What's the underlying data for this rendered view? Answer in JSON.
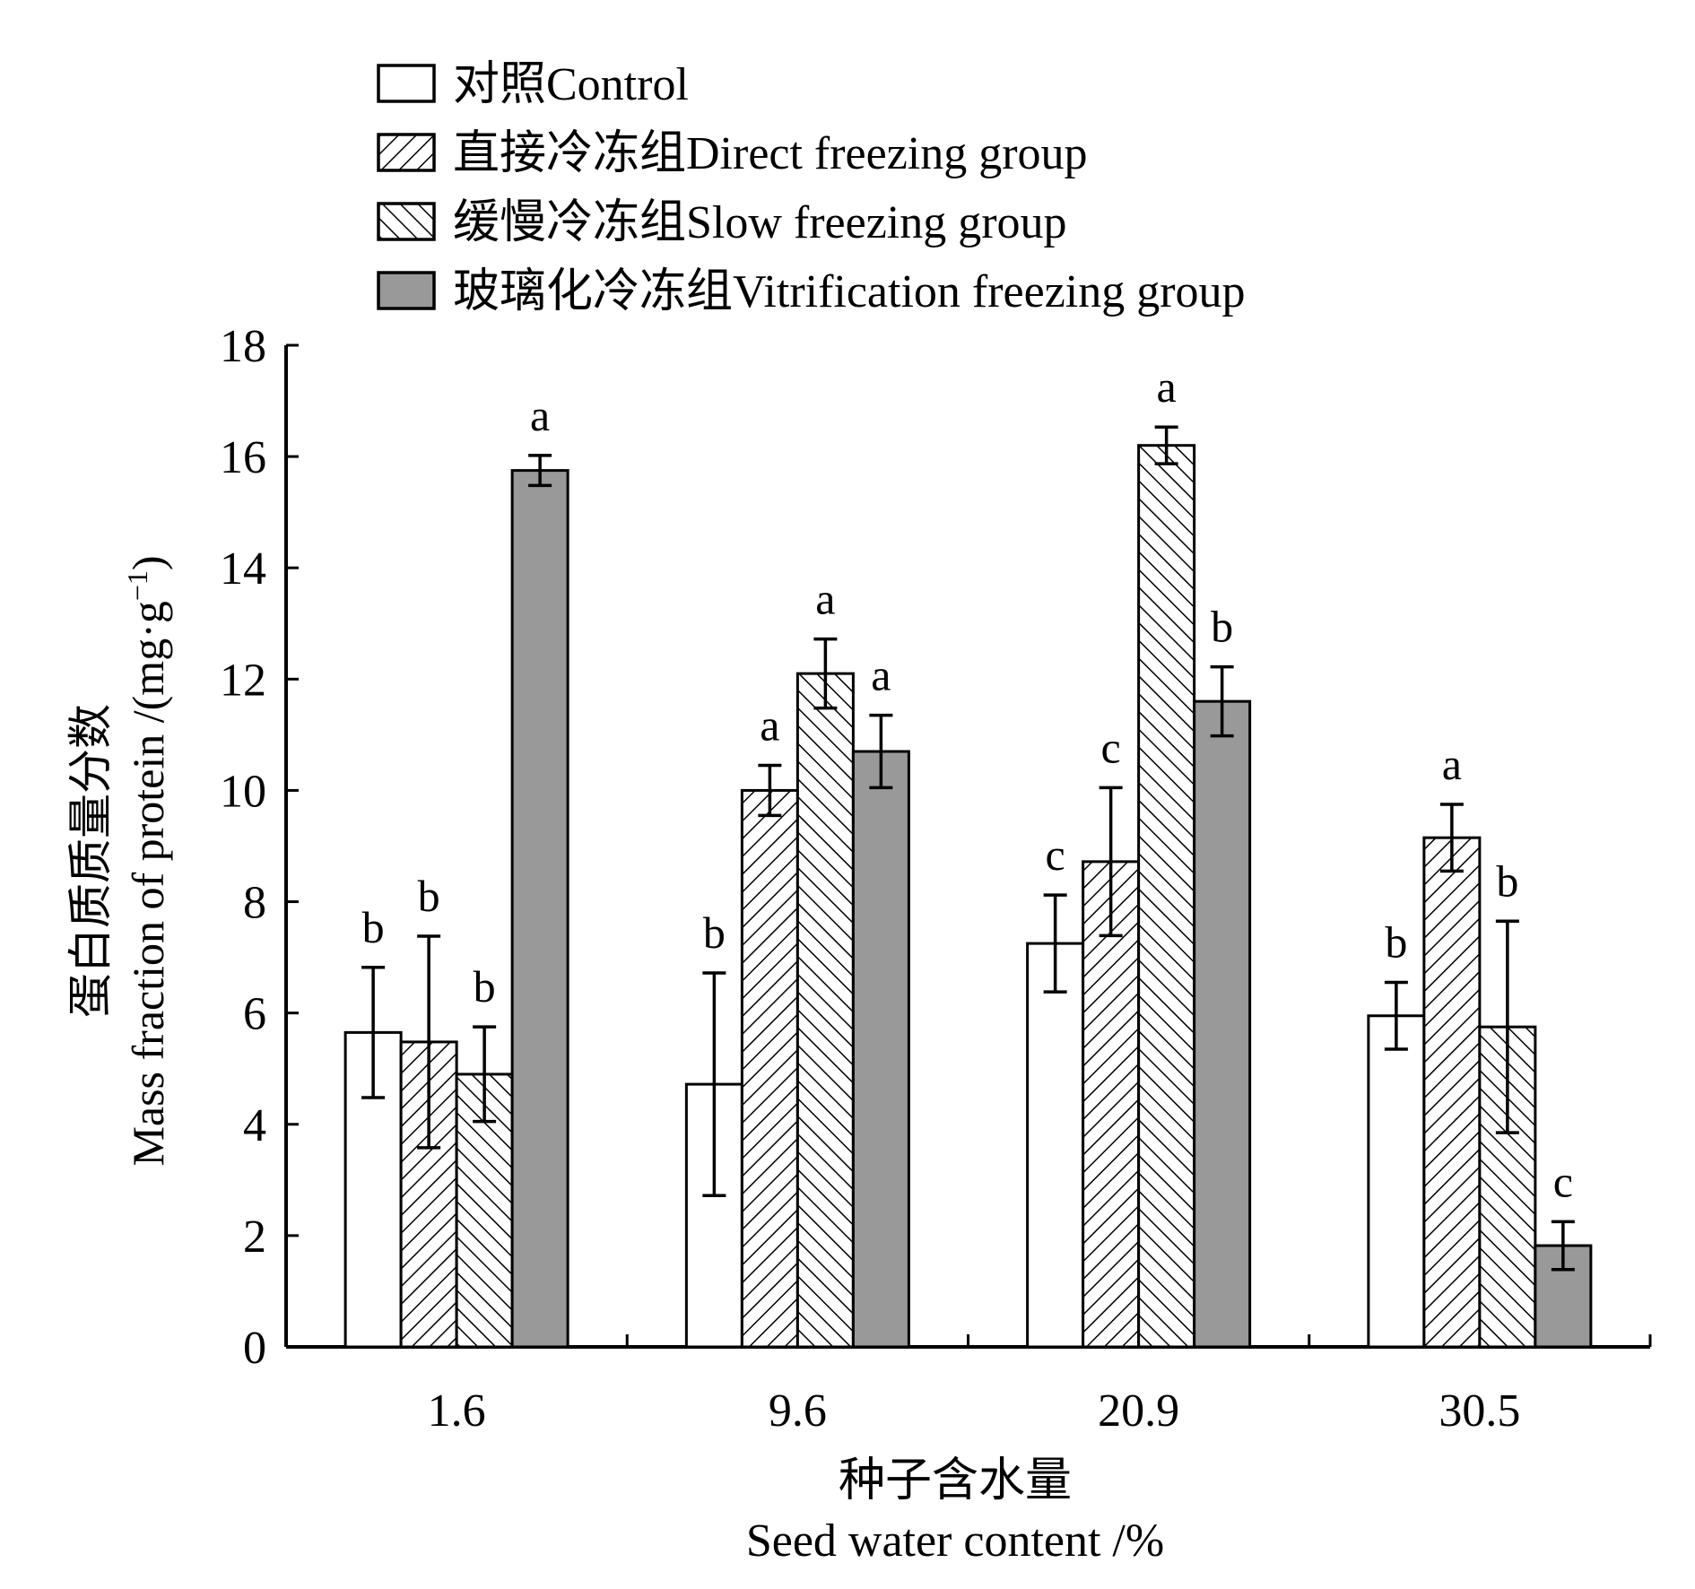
{
  "chart_data": {
    "type": "bar",
    "categories": [
      "1.6",
      "9.6",
      "20.9",
      "30.5"
    ],
    "xlabel_cn": "种子含水量",
    "xlabel_en": "Seed water content /%",
    "ylabel_cn": "蛋白质质量分数",
    "ylabel_en": "Mass fraction of protein /(mg·g",
    "ylabel_sup": "−1",
    "ylabel_close": ")",
    "ylim": [
      0,
      18
    ],
    "yticks": [
      "0",
      "2",
      "4",
      "6",
      "8",
      "10",
      "12",
      "14",
      "16",
      "18"
    ],
    "grid": false,
    "legend_position": "top",
    "series": [
      {
        "name": "对照Control",
        "pattern": "solid-white",
        "color": "#ffffff",
        "values": [
          5.65,
          4.72,
          7.25,
          5.95
        ],
        "errors": [
          1.17,
          2.0,
          0.87,
          0.6
        ],
        "letters": [
          "b",
          "b",
          "c",
          "b"
        ]
      },
      {
        "name": "直接冷冻组Direct freezing group",
        "pattern": "forward-hatch",
        "color": "#ffffff",
        "values": [
          5.48,
          10.0,
          8.72,
          9.15
        ],
        "errors": [
          1.9,
          0.45,
          1.33,
          0.6
        ],
        "letters": [
          "b",
          "a",
          "c",
          "a"
        ]
      },
      {
        "name": "缓慢冷冻组Slow freezing group",
        "pattern": "back-hatch",
        "color": "#ffffff",
        "values": [
          4.9,
          12.1,
          16.2,
          5.75
        ],
        "errors": [
          0.85,
          0.62,
          0.33,
          1.9
        ],
        "letters": [
          "b",
          "a",
          "a",
          "b"
        ]
      },
      {
        "name": "玻璃化冷冻组Vitrification freezing group",
        "pattern": "solid-gray",
        "color": "#999999",
        "values": [
          15.75,
          10.7,
          11.6,
          1.82
        ],
        "errors": [
          0.27,
          0.65,
          0.62,
          0.43
        ],
        "letters": [
          "a",
          "a",
          "b",
          "c"
        ]
      }
    ]
  }
}
